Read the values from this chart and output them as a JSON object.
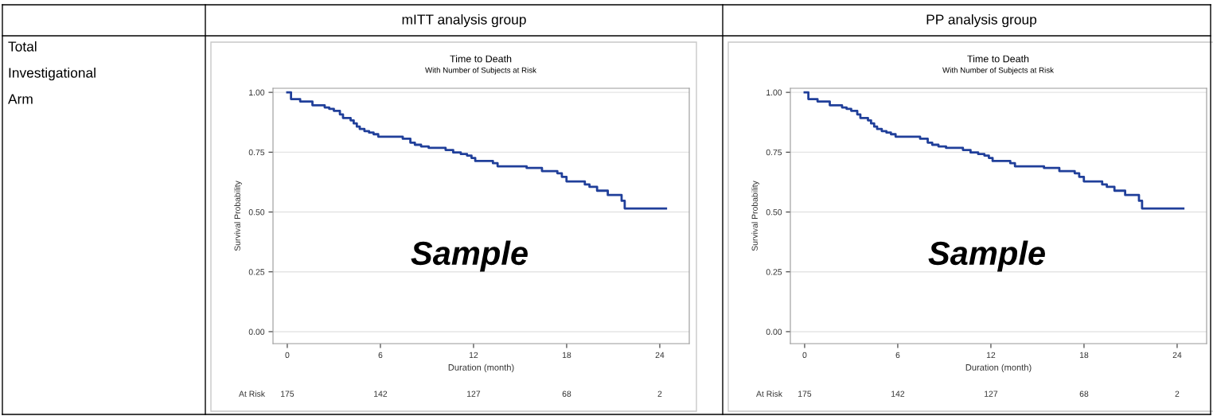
{
  "chart_data": [
    {
      "type": "step",
      "title": "Time to Death",
      "subtitle": "With Number of Subjects at Risk",
      "xlabel": "Duration (month)",
      "ylabel": "Survival Probability",
      "x": [
        0,
        0.24,
        0.83,
        1.62,
        2.41,
        2.7,
        3.0,
        3.39,
        3.59,
        4.08,
        4.28,
        4.48,
        4.67,
        4.97,
        5.27,
        5.56,
        5.86,
        7.44,
        7.93,
        8.22,
        8.62,
        9.11,
        10.2,
        10.69,
        11.18,
        11.58,
        11.87,
        12.11,
        13.25,
        13.55,
        15.42,
        16.41,
        17.4,
        17.69,
        17.99,
        19.17,
        19.47,
        19.96,
        20.65,
        21.54,
        21.74,
        24.4
      ],
      "series": [
        {
          "color": "#203f9a",
          "values": [
            1.0,
            0.972,
            0.962,
            0.946,
            0.937,
            0.931,
            0.923,
            0.908,
            0.893,
            0.883,
            0.87,
            0.857,
            0.847,
            0.838,
            0.832,
            0.825,
            0.815,
            0.806,
            0.79,
            0.781,
            0.774,
            0.768,
            0.759,
            0.749,
            0.742,
            0.736,
            0.726,
            0.713,
            0.704,
            0.691,
            0.684,
            0.671,
            0.662,
            0.647,
            0.628,
            0.615,
            0.605,
            0.589,
            0.571,
            0.547,
            0.515,
            0.515
          ]
        }
      ],
      "xlim": [
        -0.92,
        25.9
      ],
      "xticks": [
        0,
        6,
        12,
        18,
        24
      ],
      "ylim": [
        -0.05,
        1.017
      ],
      "yticks": [
        {
          "value": 0,
          "label": "0.00"
        },
        {
          "value": 0.25,
          "label": "0.25"
        },
        {
          "value": 0.5,
          "label": "0.50"
        },
        {
          "value": 0.75,
          "label": "0.75"
        },
        {
          "value": 1,
          "label": "1.00"
        }
      ],
      "grid": "y",
      "legend": false,
      "line_style": "solid",
      "marker": "none",
      "annotations": [
        "mITT analysis group",
        "Sample",
        "At Risk",
        "175",
        "142",
        "127",
        "68",
        "2",
        "Total",
        "Investigational",
        "Arm"
      ]
    },
    {
      "type": "step",
      "title": "Time to Death",
      "subtitle": "With Number of Subjects at Risk",
      "xlabel": "Duration (month)",
      "ylabel": "Survival Probability",
      "x": [
        0,
        0.24,
        0.83,
        1.62,
        2.41,
        2.7,
        3.0,
        3.39,
        3.59,
        4.08,
        4.28,
        4.48,
        4.67,
        4.97,
        5.27,
        5.56,
        5.86,
        7.44,
        7.93,
        8.22,
        8.62,
        9.11,
        10.2,
        10.69,
        11.18,
        11.58,
        11.87,
        12.11,
        13.25,
        13.55,
        15.42,
        16.41,
        17.4,
        17.69,
        17.99,
        19.17,
        19.47,
        19.96,
        20.65,
        21.54,
        21.74,
        24.4
      ],
      "series": [
        {
          "color": "#203f9a",
          "values": [
            1.0,
            0.972,
            0.962,
            0.946,
            0.937,
            0.931,
            0.923,
            0.908,
            0.893,
            0.883,
            0.87,
            0.857,
            0.847,
            0.838,
            0.832,
            0.825,
            0.815,
            0.806,
            0.79,
            0.781,
            0.774,
            0.768,
            0.759,
            0.749,
            0.742,
            0.736,
            0.726,
            0.713,
            0.704,
            0.691,
            0.684,
            0.671,
            0.662,
            0.647,
            0.628,
            0.615,
            0.605,
            0.589,
            0.571,
            0.547,
            0.515,
            0.515
          ]
        }
      ],
      "xlim": [
        -0.92,
        25.9
      ],
      "xticks": [
        0,
        6,
        12,
        18,
        24
      ],
      "ylim": [
        -0.05,
        1.017
      ],
      "yticks": [
        {
          "value": 0,
          "label": "0.00"
        },
        {
          "value": 0.25,
          "label": "0.25"
        },
        {
          "value": 0.5,
          "label": "0.50"
        },
        {
          "value": 0.75,
          "label": "0.75"
        },
        {
          "value": 1,
          "label": "1.00"
        }
      ],
      "grid": "y",
      "legend": false,
      "line_style": "solid",
      "marker": "none",
      "annotations": [
        "PP analysis group",
        "Sample",
        "At Risk",
        "175",
        "142",
        "127",
        "68",
        "2"
      ]
    }
  ]
}
